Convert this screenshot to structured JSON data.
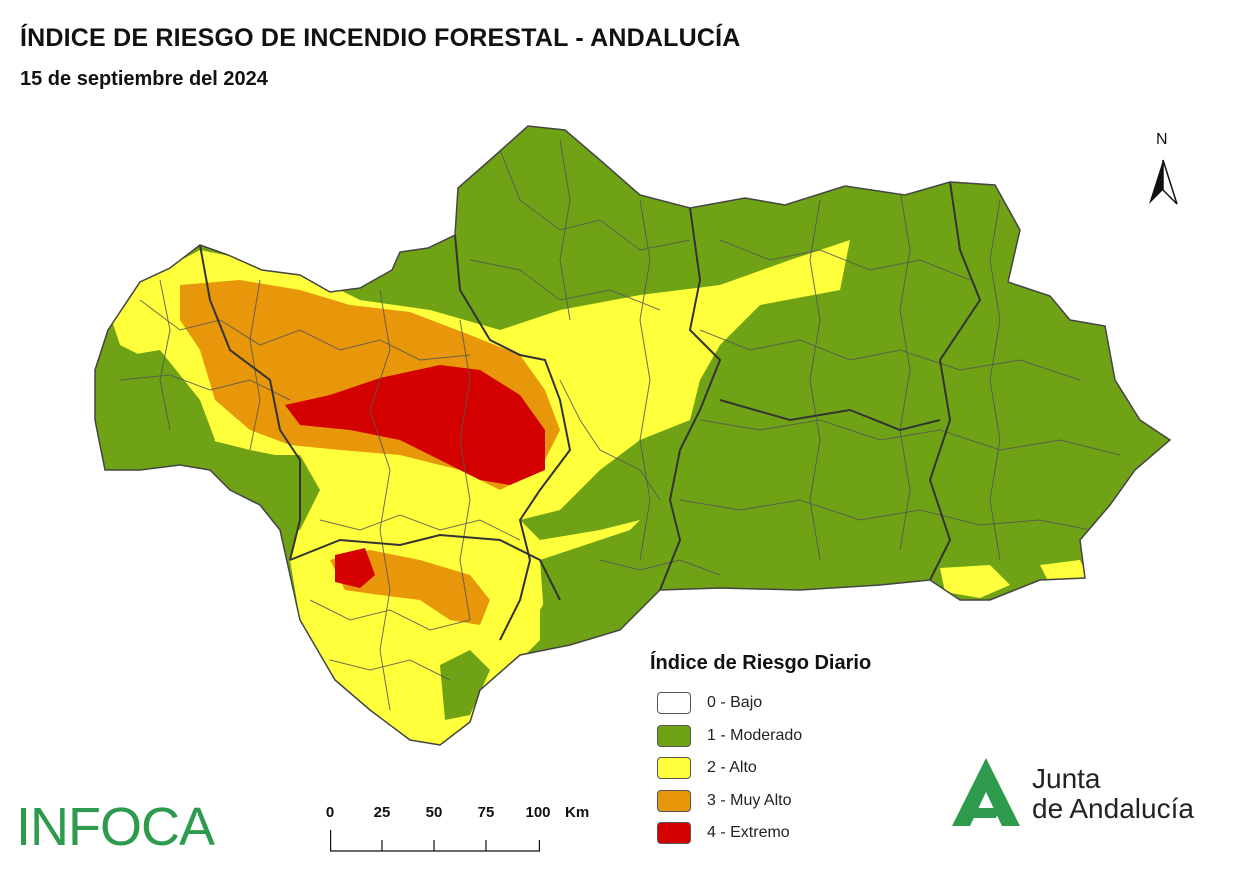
{
  "header": {
    "title": "ÍNDICE DE RIESGO DE INCENDIO FORESTAL - ANDALUCÍA",
    "subtitle": "15 de septiembre del 2024"
  },
  "north_arrow": {
    "label": "N"
  },
  "legend": {
    "title": "Índice de Riesgo Diario",
    "items": [
      {
        "label": "0 - Bajo",
        "color": "#ffffff"
      },
      {
        "label": "1 - Moderado",
        "color": "#6fa315"
      },
      {
        "label": "2 - Alto",
        "color": "#ffff3c"
      },
      {
        "label": "3 - Muy Alto",
        "color": "#e8960a"
      },
      {
        "label": "4 - Extremo",
        "color": "#d40000"
      }
    ]
  },
  "scale_bar": {
    "ticks": [
      "0",
      "25",
      "50",
      "75",
      "100"
    ],
    "unit": "Km"
  },
  "logos": {
    "infoca": "INFOCA",
    "junta_line1": "Junta",
    "junta_line2": "de Andalucía"
  },
  "colors": {
    "moderado": "#6fa315",
    "alto": "#ffff3c",
    "muy_alto": "#e8960a",
    "extremo": "#d40000",
    "border": "#555555",
    "province_border": "#333333",
    "brand_green": "#2e9a4e"
  }
}
